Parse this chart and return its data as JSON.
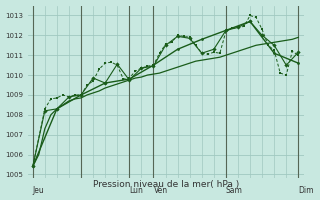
{
  "title": "Pression niveau de la mer( hPa )",
  "background_color": "#c8e8e0",
  "plot_bg_color": "#c8e8e0",
  "grid_color": "#a0c8c0",
  "line_color": "#1a5c1a",
  "ylim": [
    1004.8,
    1013.5
  ],
  "yticks": [
    1005,
    1006,
    1007,
    1008,
    1009,
    1010,
    1011,
    1012,
    1013
  ],
  "figsize": [
    3.2,
    2.0
  ],
  "dpi": 100,
  "day_labels": [
    "Jeu",
    "Lun",
    "Ven",
    "Sam",
    "Dim",
    ""
  ],
  "line1_x": [
    0,
    6,
    12,
    18,
    24,
    30,
    36,
    42,
    48,
    54,
    60,
    66,
    72,
    78,
    84,
    90,
    96,
    102,
    108,
    114,
    120,
    126,
    132,
    138,
    144,
    150,
    156,
    162,
    168,
    174,
    180,
    186,
    192,
    198,
    204,
    210,
    216,
    222,
    228,
    234,
    240,
    246,
    252,
    258,
    264
  ],
  "line1_y": [
    1005.4,
    1006.0,
    1007.3,
    1008.0,
    1008.3,
    1008.5,
    1008.7,
    1008.8,
    1008.85,
    1009.0,
    1009.1,
    1009.2,
    1009.35,
    1009.45,
    1009.55,
    1009.65,
    1009.75,
    1009.85,
    1009.9,
    1010.0,
    1010.05,
    1010.1,
    1010.2,
    1010.3,
    1010.4,
    1010.5,
    1010.6,
    1010.7,
    1010.75,
    1010.8,
    1010.85,
    1010.9,
    1011.0,
    1011.1,
    1011.2,
    1011.3,
    1011.4,
    1011.5,
    1011.55,
    1011.6,
    1011.65,
    1011.7,
    1011.75,
    1011.8,
    1011.9
  ],
  "line2_x": [
    0,
    12,
    18,
    24,
    30,
    36,
    42,
    48,
    54,
    60,
    66,
    72,
    78,
    84,
    90,
    96,
    102,
    108,
    114,
    120,
    126,
    132,
    138,
    144,
    150,
    156,
    162,
    168,
    174,
    180,
    186,
    192,
    198,
    204,
    210,
    216,
    222,
    228,
    234,
    240,
    246,
    252,
    258,
    264
  ],
  "line2_y": [
    1005.4,
    1008.3,
    1008.8,
    1008.85,
    1009.0,
    1008.9,
    1009.0,
    1009.0,
    1009.5,
    1009.7,
    1010.3,
    1010.6,
    1010.65,
    1010.5,
    1009.8,
    1009.85,
    1010.2,
    1010.35,
    1010.45,
    1010.5,
    1011.1,
    1011.55,
    1011.65,
    1012.0,
    1011.95,
    1011.9,
    1011.5,
    1011.1,
    1011.05,
    1011.15,
    1011.1,
    1012.2,
    1012.35,
    1012.4,
    1012.45,
    1013.0,
    1012.9,
    1012.3,
    1011.5,
    1011.25,
    1010.1,
    1010.0,
    1011.2,
    1011.0
  ],
  "line3_x": [
    0,
    12,
    24,
    36,
    48,
    60,
    72,
    84,
    96,
    108,
    120,
    132,
    144,
    156,
    168,
    180,
    192,
    204,
    216,
    228,
    240,
    252,
    264
  ],
  "line3_y": [
    1005.4,
    1008.2,
    1008.3,
    1008.9,
    1009.0,
    1009.85,
    1009.6,
    1010.55,
    1009.75,
    1010.35,
    1010.45,
    1011.5,
    1011.95,
    1011.85,
    1011.1,
    1011.3,
    1012.25,
    1012.4,
    1012.7,
    1012.0,
    1011.5,
    1010.5,
    1011.15
  ],
  "line4_x": [
    0,
    24,
    48,
    72,
    96,
    120,
    144,
    168,
    192,
    216,
    240,
    264
  ],
  "line4_y": [
    1005.4,
    1008.3,
    1009.0,
    1009.6,
    1009.8,
    1010.5,
    1011.3,
    1011.8,
    1012.25,
    1012.7,
    1011.1,
    1010.6
  ]
}
